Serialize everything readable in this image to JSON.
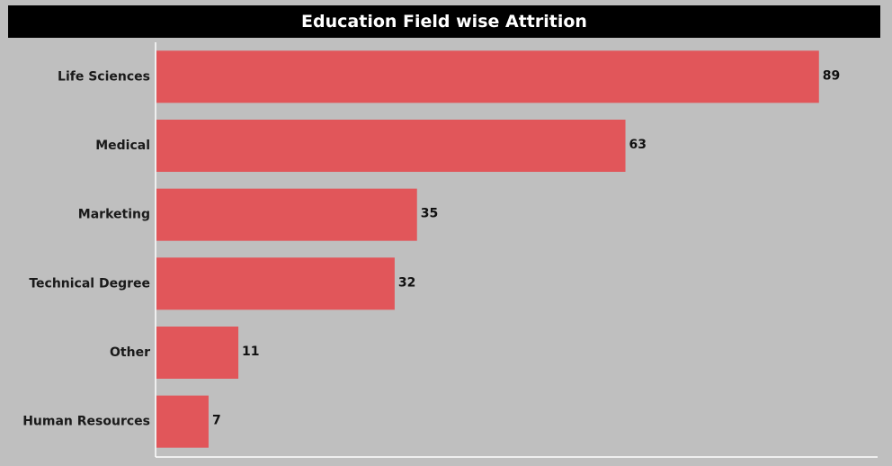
{
  "chart_data": {
    "type": "bar",
    "orientation": "horizontal",
    "title": "Education Field wise Attrition",
    "categories": [
      "Life Sciences",
      "Medical",
      "Marketing",
      "Technical Degree",
      "Other",
      "Human Resources"
    ],
    "values": [
      89,
      63,
      35,
      32,
      11,
      7
    ],
    "xlabel": "",
    "ylabel": "",
    "xlim": [
      0,
      97
    ],
    "grid": false,
    "data_labels": true,
    "colors": {
      "bar": "#e1565a",
      "background": "#bfbfbf",
      "title_bg": "#000000",
      "title_text": "#ffffff",
      "axis": "#ffffff"
    }
  }
}
